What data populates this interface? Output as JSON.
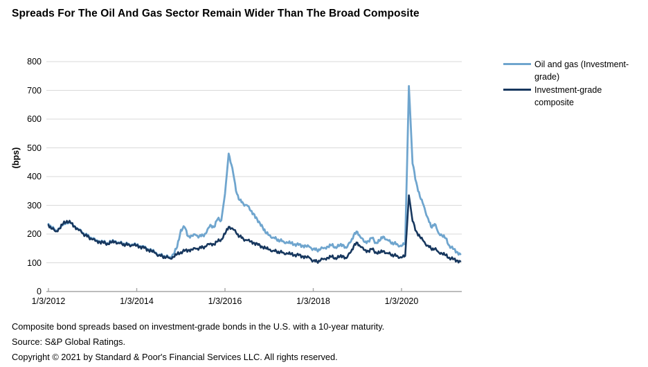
{
  "title": "Spreads For The Oil And Gas Sector Remain Wider Than The Broad Composite",
  "y_axis": {
    "label": "(bps)",
    "ticks": [
      0,
      100,
      200,
      300,
      400,
      500,
      600,
      700,
      800
    ]
  },
  "x_axis": {
    "tick_labels": [
      "1/3/2012",
      "1/3/2014",
      "1/3/2016",
      "1/3/2018",
      "1/3/2020"
    ]
  },
  "legend": [
    {
      "label": "Oil and gas (Investment-grade)",
      "color": "#6FA5CE"
    },
    {
      "label": "Investment-grade composite",
      "color": "#17375E"
    }
  ],
  "footnotes": [
    "Composite bond spreads based on investment-grade bonds in the U.S. with a 10-year maturity.",
    "Source: S&P Global Ratings.",
    "Copyright © 2021 by Standard & Poor's Financial Services LLC. All rights reserved."
  ],
  "colors": {
    "gridline": "#D9D9D9",
    "axis": "#A6A6A6",
    "text": "#000000"
  },
  "chart_data": {
    "type": "line",
    "title": "Spreads For The Oil And Gas Sector Remain Wider Than The Broad Composite",
    "xlabel": "",
    "ylabel": "(bps)",
    "ylim": [
      0,
      800
    ],
    "grid": "horizontal",
    "legend_position": "right",
    "x_unit": "monthly",
    "x_start": "2012-01",
    "x_end": "2021-05",
    "x_tick_labels": [
      "1/3/2012",
      "1/3/2014",
      "1/3/2016",
      "1/3/2018",
      "1/3/2020"
    ],
    "annotations": {
      "peak_2016_oil_gas_bps": 480,
      "peak_2020_oil_gas_bps": 715,
      "peak_2020_composite_bps": 335
    },
    "series": [
      {
        "name": "Oil and gas (Investment-grade)",
        "color": "#6FA5CE",
        "values": [
          235,
          222,
          212,
          220,
          232,
          243,
          238,
          228,
          218,
          208,
          198,
          192,
          184,
          178,
          174,
          171,
          169,
          172,
          175,
          171,
          167,
          165,
          164,
          163,
          162,
          158,
          153,
          148,
          143,
          136,
          128,
          124,
          121,
          119,
          130,
          155,
          215,
          224,
          192,
          194,
          197,
          192,
          195,
          206,
          232,
          224,
          252,
          248,
          340,
          480,
          430,
          350,
          318,
          305,
          300,
          281,
          268,
          241,
          232,
          205,
          196,
          188,
          182,
          177,
          173,
          170,
          168,
          165,
          162,
          160,
          158,
          155,
          148,
          144,
          148,
          152,
          156,
          161,
          155,
          158,
          163,
          152,
          170,
          196,
          208,
          186,
          172,
          176,
          186,
          170,
          176,
          191,
          181,
          171,
          168,
          162,
          158,
          168,
          715,
          445,
          380,
          330,
          300,
          260,
          225,
          235,
          205,
          195,
          185,
          160,
          148,
          138,
          130
        ]
      },
      {
        "name": "Investment-grade composite",
        "color": "#17375E",
        "values": [
          232,
          218,
          209,
          219,
          236,
          246,
          239,
          227,
          217,
          206,
          196,
          189,
          181,
          176,
          172,
          169,
          167,
          170,
          173,
          169,
          165,
          163,
          162,
          161,
          160,
          156,
          151,
          146,
          141,
          134,
          126,
          122,
          119,
          116,
          120,
          130,
          137,
          141,
          144,
          146,
          149,
          151,
          154,
          159,
          167,
          164,
          174,
          182,
          200,
          225,
          220,
          205,
          192,
          183,
          178,
          174,
          169,
          162,
          157,
          151,
          146,
          142,
          139,
          137,
          134,
          132,
          130,
          128,
          126,
          123,
          120,
          117,
          107,
          104,
          109,
          114,
          117,
          121,
          117,
          119,
          124,
          116,
          134,
          158,
          170,
          154,
          144,
          141,
          147,
          137,
          134,
          141,
          134,
          129,
          126,
          122,
          118,
          124,
          335,
          245,
          210,
          190,
          175,
          160,
          150,
          148,
          138,
          132,
          126,
          118,
          112,
          108,
          105
        ]
      }
    ]
  }
}
